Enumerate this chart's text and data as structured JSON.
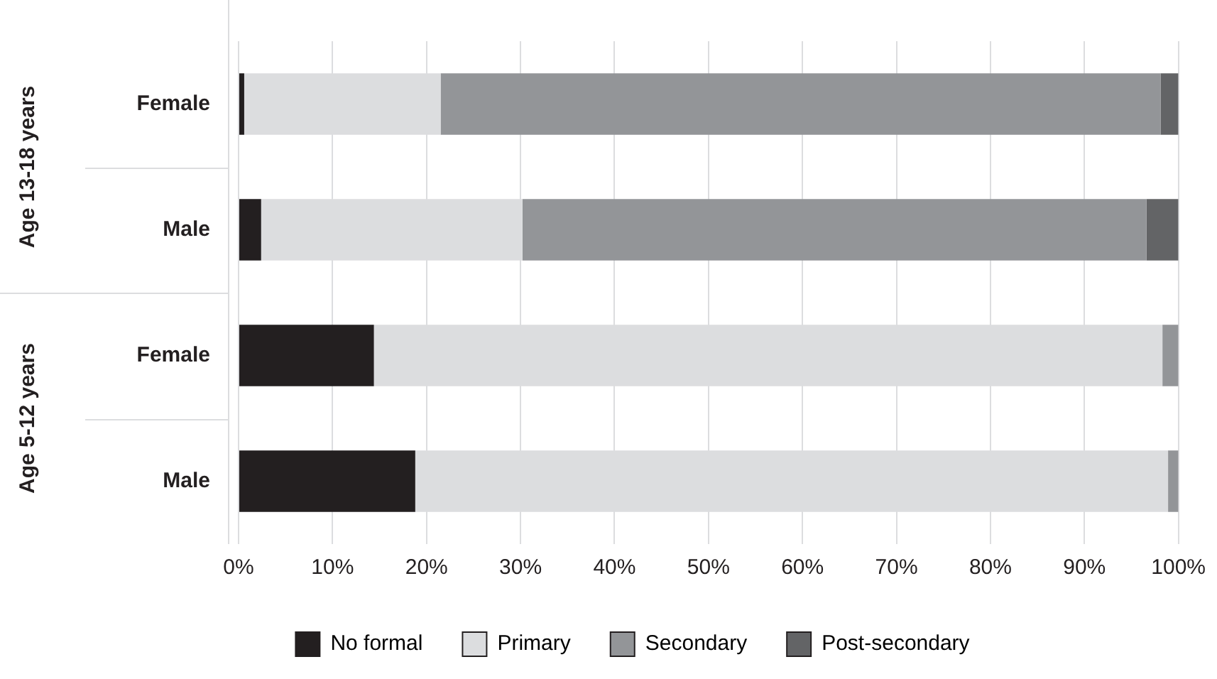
{
  "chart_data": {
    "type": "bar",
    "orientation": "horizontal",
    "stacked": true,
    "categories": [
      "Female",
      "Male",
      "Female",
      "Male"
    ],
    "series": [
      {
        "name": "No formal",
        "color": "#231f20",
        "values": [
          0.6,
          2.4,
          14.4,
          18.8
        ]
      },
      {
        "name": "Primary",
        "color": "#dcdddf",
        "values": [
          20.9,
          27.8,
          83.9,
          80.1
        ]
      },
      {
        "name": "Secondary",
        "color": "#939598",
        "values": [
          76.6,
          66.4,
          1.7,
          1.1
        ]
      },
      {
        "name": "Post-secondary",
        "color": "#636466",
        "values": [
          1.9,
          3.4,
          0,
          0
        ]
      }
    ],
    "xlim": [
      0,
      100
    ],
    "xticks": [
      {
        "value": 0,
        "label": "0%"
      },
      {
        "value": 10,
        "label": "10%"
      },
      {
        "value": 20,
        "label": "20%"
      },
      {
        "value": 30,
        "label": "30%"
      },
      {
        "value": 40,
        "label": "40%"
      },
      {
        "value": 50,
        "label": "50%"
      },
      {
        "value": 60,
        "label": "60%"
      },
      {
        "value": 70,
        "label": "70%"
      },
      {
        "value": 80,
        "label": "80%"
      },
      {
        "value": 90,
        "label": "90%"
      },
      {
        "value": 100,
        "label": "100%"
      }
    ],
    "grid": "x",
    "legend": "bottom",
    "annotations": [
      "Age 13-18 years",
      "Age 5-12 years"
    ]
  }
}
